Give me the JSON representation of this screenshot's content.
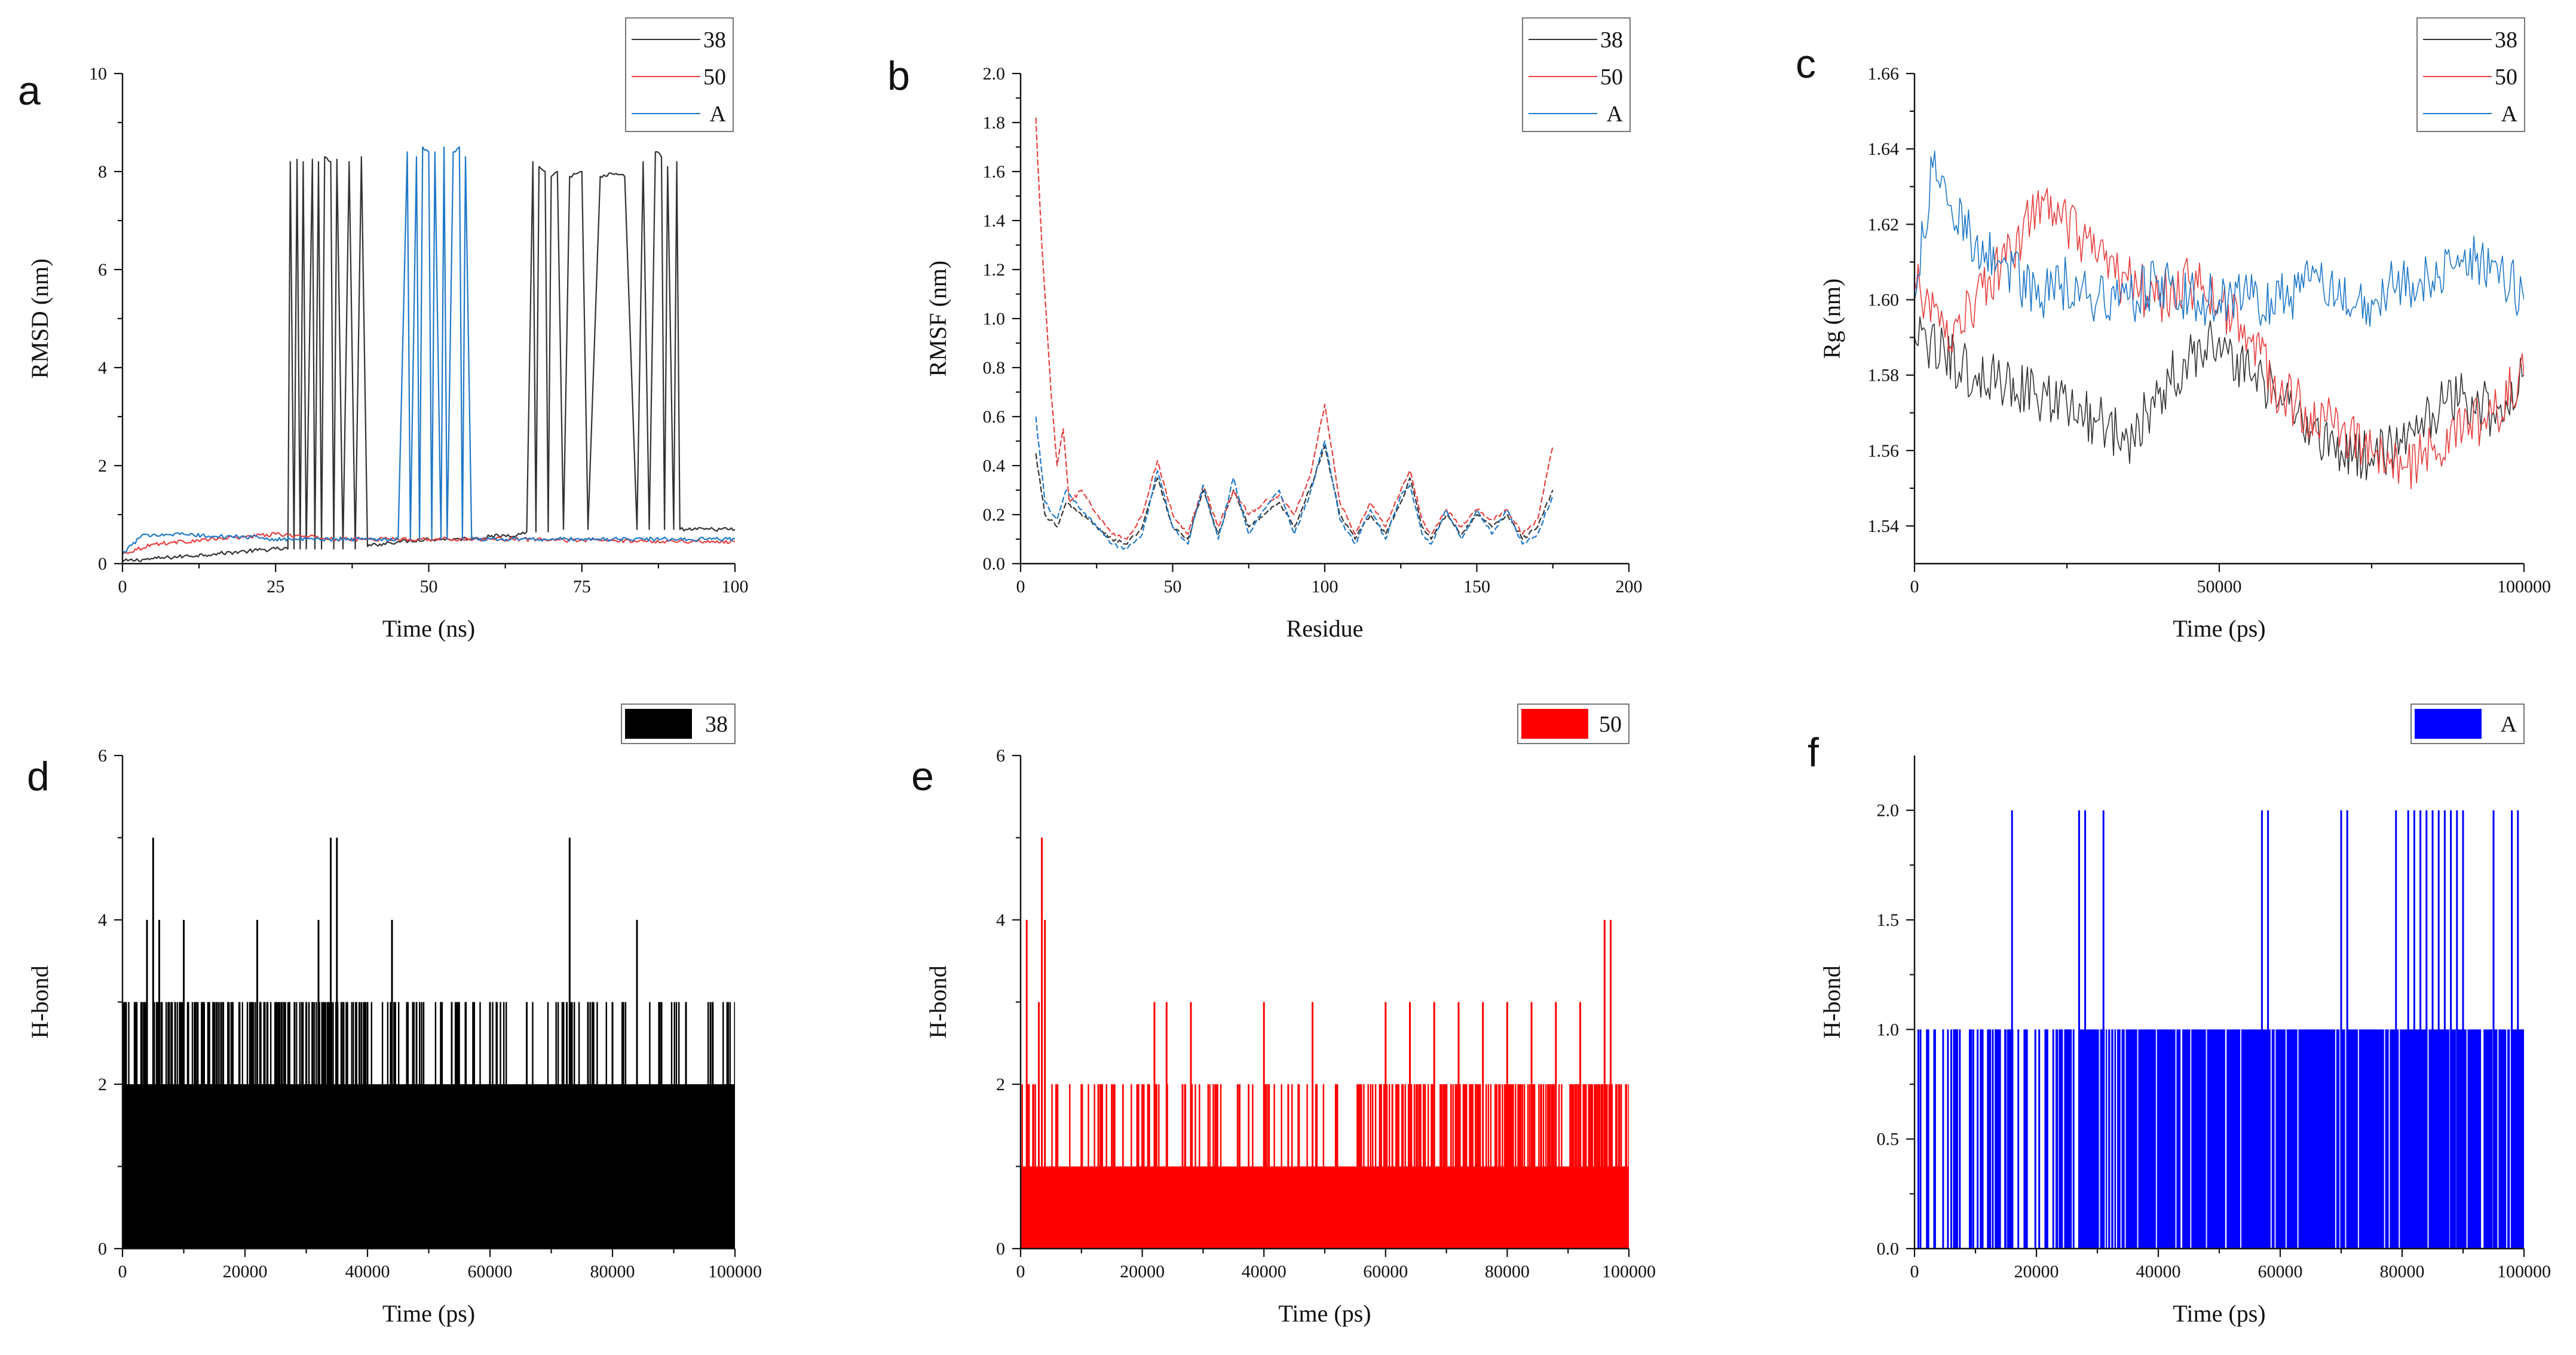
{
  "chart_data": [
    {
      "panel": "a",
      "type": "line",
      "xlabel": "Time (ns)",
      "ylabel": "RMSD (nm)",
      "xlim": [
        0,
        100
      ],
      "ylim": [
        0,
        10
      ],
      "xticks": [
        0,
        25,
        50,
        75,
        100
      ],
      "yticks": [
        0,
        2,
        4,
        6,
        8,
        10
      ],
      "legend_position": "top-right",
      "series": [
        {
          "name": "38",
          "color": "#333333",
          "x": [
            0,
            5,
            10,
            15,
            20,
            25,
            27,
            27.4,
            28,
            28.5,
            29,
            29.5,
            30,
            31,
            31.4,
            32,
            32.5,
            33,
            34,
            34.5,
            35,
            36,
            37,
            38,
            39,
            40,
            42,
            45,
            50,
            55,
            60,
            65,
            66,
            67,
            67.5,
            68,
            69,
            69.5,
            70,
            71,
            72,
            73,
            74,
            75,
            76,
            78,
            80,
            82,
            84,
            85,
            86,
            87,
            88,
            88.5,
            89,
            90,
            90.5,
            91,
            92,
            95,
            100
          ],
          "y": [
            0.05,
            0.1,
            0.15,
            0.2,
            0.25,
            0.3,
            0.3,
            8.2,
            0.3,
            8.25,
            0.3,
            8.2,
            0.3,
            8.25,
            0.3,
            8.2,
            0.3,
            8.3,
            8.2,
            0.3,
            8.25,
            0.3,
            8.2,
            0.3,
            8.3,
            0.35,
            0.4,
            0.45,
            0.5,
            0.5,
            0.55,
            0.6,
            0.65,
            8.2,
            0.65,
            8.1,
            8.0,
            0.65,
            7.9,
            8.0,
            0.7,
            7.9,
            7.95,
            8.0,
            0.7,
            7.9,
            7.95,
            7.9,
            0.7,
            8.2,
            0.7,
            8.4,
            8.3,
            0.7,
            8.1,
            0.7,
            8.2,
            0.7,
            0.7,
            0.7,
            0.7
          ]
        },
        {
          "name": "50",
          "color": "#e84040",
          "x": [
            0,
            5,
            10,
            15,
            20,
            25,
            30,
            35,
            40,
            45,
            50,
            55,
            60,
            65,
            70,
            75,
            80,
            85,
            90,
            95,
            100
          ],
          "y": [
            0.2,
            0.4,
            0.45,
            0.5,
            0.55,
            0.6,
            0.55,
            0.5,
            0.5,
            0.5,
            0.5,
            0.5,
            0.5,
            0.5,
            0.48,
            0.48,
            0.47,
            0.46,
            0.46,
            0.45,
            0.45
          ]
        },
        {
          "name": "A",
          "color": "#1f78c8",
          "x": [
            0,
            3,
            5,
            10,
            15,
            20,
            25,
            30,
            35,
            40,
            45,
            46.5,
            47,
            48,
            48.5,
            49,
            50,
            50.5,
            51,
            52,
            52.5,
            53,
            54,
            55,
            55.5,
            56,
            57,
            60,
            65,
            70,
            75,
            80,
            85,
            90,
            95,
            100
          ],
          "y": [
            0.2,
            0.55,
            0.6,
            0.6,
            0.55,
            0.55,
            0.5,
            0.5,
            0.5,
            0.5,
            0.5,
            8.4,
            0.5,
            8.3,
            0.5,
            8.5,
            8.4,
            0.5,
            8.4,
            0.5,
            8.5,
            0.5,
            8.4,
            8.5,
            0.5,
            8.3,
            0.5,
            0.5,
            0.5,
            0.5,
            0.5,
            0.5,
            0.5,
            0.5,
            0.5,
            0.5
          ]
        }
      ]
    },
    {
      "panel": "b",
      "type": "line",
      "xlabel": "Residue",
      "ylabel": "RMSF (nm)",
      "xlim": [
        0,
        200
      ],
      "ylim": [
        0,
        2.0
      ],
      "xticks": [
        0,
        50,
        100,
        150,
        200
      ],
      "yticks": [
        0.0,
        0.2,
        0.4,
        0.6,
        0.8,
        1.0,
        1.2,
        1.4,
        1.6,
        1.8,
        2.0
      ],
      "legend_position": "top-right",
      "series": [
        {
          "name": "38",
          "color": "#333333",
          "x": [
            5,
            8,
            12,
            15,
            20,
            25,
            30,
            35,
            40,
            45,
            50,
            55,
            60,
            65,
            70,
            75,
            80,
            85,
            90,
            95,
            100,
            105,
            110,
            115,
            120,
            125,
            128,
            132,
            135,
            140,
            145,
            150,
            155,
            160,
            165,
            170,
            175
          ],
          "y": [
            0.45,
            0.2,
            0.15,
            0.25,
            0.2,
            0.15,
            0.1,
            0.08,
            0.15,
            0.35,
            0.15,
            0.1,
            0.3,
            0.12,
            0.3,
            0.15,
            0.2,
            0.25,
            0.15,
            0.3,
            0.48,
            0.2,
            0.1,
            0.2,
            0.12,
            0.25,
            0.35,
            0.15,
            0.1,
            0.2,
            0.12,
            0.2,
            0.15,
            0.2,
            0.1,
            0.15,
            0.3
          ]
        },
        {
          "name": "50",
          "color": "#e84040",
          "x": [
            5,
            7,
            10,
            12,
            14,
            16,
            20,
            25,
            30,
            35,
            40,
            45,
            50,
            55,
            60,
            65,
            70,
            75,
            80,
            85,
            90,
            95,
            100,
            105,
            110,
            115,
            120,
            125,
            128,
            132,
            135,
            140,
            145,
            150,
            155,
            160,
            165,
            170,
            175
          ],
          "y": [
            1.82,
            1.3,
            0.7,
            0.4,
            0.55,
            0.25,
            0.3,
            0.2,
            0.12,
            0.1,
            0.2,
            0.42,
            0.2,
            0.12,
            0.32,
            0.15,
            0.3,
            0.2,
            0.25,
            0.28,
            0.2,
            0.35,
            0.65,
            0.25,
            0.12,
            0.25,
            0.15,
            0.3,
            0.38,
            0.18,
            0.12,
            0.22,
            0.15,
            0.22,
            0.18,
            0.22,
            0.12,
            0.18,
            0.48
          ]
        },
        {
          "name": "A",
          "color": "#1f78c8",
          "x": [
            5,
            8,
            12,
            15,
            20,
            25,
            30,
            35,
            40,
            45,
            50,
            55,
            60,
            65,
            70,
            75,
            80,
            85,
            90,
            95,
            100,
            105,
            110,
            115,
            120,
            125,
            128,
            132,
            135,
            140,
            145,
            150,
            155,
            160,
            165,
            170,
            175
          ],
          "y": [
            0.6,
            0.25,
            0.18,
            0.3,
            0.22,
            0.15,
            0.08,
            0.06,
            0.12,
            0.38,
            0.15,
            0.08,
            0.32,
            0.1,
            0.35,
            0.12,
            0.22,
            0.3,
            0.12,
            0.28,
            0.5,
            0.18,
            0.08,
            0.22,
            0.1,
            0.28,
            0.32,
            0.12,
            0.08,
            0.22,
            0.1,
            0.22,
            0.12,
            0.22,
            0.08,
            0.12,
            0.28
          ]
        }
      ]
    },
    {
      "panel": "c",
      "type": "line",
      "xlabel": "Time (ps)",
      "ylabel": "Rg (nm)",
      "xlim": [
        0,
        100000
      ],
      "ylim": [
        1.53,
        1.66
      ],
      "xticks": [
        0,
        50000,
        100000
      ],
      "yticks": [
        1.54,
        1.56,
        1.58,
        1.6,
        1.62,
        1.64,
        1.66
      ],
      "legend_position": "top-right",
      "series": [
        {
          "name": "38",
          "color": "#333333",
          "x": [
            0,
            5000,
            10000,
            15000,
            20000,
            25000,
            30000,
            35000,
            40000,
            45000,
            50000,
            55000,
            60000,
            65000,
            70000,
            75000,
            80000,
            85000,
            90000,
            95000,
            100000
          ],
          "y": [
            1.59,
            1.585,
            1.58,
            1.578,
            1.575,
            1.572,
            1.568,
            1.563,
            1.575,
            1.585,
            1.59,
            1.58,
            1.575,
            1.565,
            1.56,
            1.558,
            1.562,
            1.57,
            1.575,
            1.57,
            1.58
          ]
        },
        {
          "name": "50",
          "color": "#e84040",
          "x": [
            0,
            5000,
            10000,
            15000,
            20000,
            25000,
            30000,
            35000,
            40000,
            45000,
            50000,
            55000,
            60000,
            65000,
            70000,
            75000,
            80000,
            85000,
            90000,
            95000,
            100000
          ],
          "y": [
            1.605,
            1.59,
            1.6,
            1.61,
            1.625,
            1.62,
            1.61,
            1.605,
            1.6,
            1.605,
            1.6,
            1.59,
            1.575,
            1.57,
            1.565,
            1.56,
            1.555,
            1.56,
            1.565,
            1.57,
            1.58
          ]
        },
        {
          "name": "A",
          "color": "#1f78c8",
          "x": [
            0,
            3000,
            6000,
            10000,
            15000,
            20000,
            25000,
            30000,
            35000,
            40000,
            45000,
            50000,
            55000,
            60000,
            65000,
            70000,
            75000,
            80000,
            85000,
            90000,
            95000,
            100000
          ],
          "y": [
            1.6,
            1.635,
            1.625,
            1.615,
            1.61,
            1.6,
            1.605,
            1.6,
            1.6,
            1.605,
            1.6,
            1.6,
            1.6,
            1.6,
            1.605,
            1.6,
            1.6,
            1.605,
            1.605,
            1.61,
            1.61,
            1.6
          ]
        }
      ]
    },
    {
      "panel": "d",
      "type": "bar",
      "xlabel": "Time (ps)",
      "ylabel": "H-bond",
      "xlim": [
        0,
        100000
      ],
      "ylim": [
        0,
        6
      ],
      "xticks": [
        0,
        20000,
        40000,
        60000,
        80000,
        100000
      ],
      "yticks": [
        0,
        2,
        4,
        6
      ],
      "legend_position": "top-right",
      "series": [
        {
          "name": "38",
          "color": "#000000",
          "base_level": 2,
          "baseline_until": 100000,
          "x": [
            2000,
            4000,
            5000,
            6000,
            8000,
            10000,
            14000,
            18000,
            22000,
            26000,
            30000,
            32000,
            34000,
            35000,
            36000,
            40000,
            44000,
            48000,
            52000,
            56000,
            60000,
            66000,
            72000,
            73000,
            76000,
            80000,
            84000,
            88000,
            92000,
            96000,
            100000
          ],
          "y": [
            3,
            4,
            5,
            4,
            3,
            4,
            3,
            3,
            4,
            3,
            3,
            4,
            5,
            5,
            3,
            3,
            4,
            3,
            3,
            3,
            3,
            3,
            3,
            5,
            3,
            3,
            4,
            3,
            3,
            3,
            3
          ]
        }
      ]
    },
    {
      "panel": "e",
      "type": "bar",
      "xlabel": "Time (ps)",
      "ylabel": "H-bond",
      "xlim": [
        0,
        100000
      ],
      "ylim": [
        0,
        6
      ],
      "xticks": [
        0,
        20000,
        40000,
        60000,
        80000,
        100000
      ],
      "yticks": [
        0,
        2,
        4,
        6
      ],
      "legend_position": "top-right",
      "series": [
        {
          "name": "50",
          "color": "#ff0000",
          "base_level": 1,
          "baseline_until": 100000,
          "x": [
            1000,
            3000,
            3500,
            4000,
            6000,
            10000,
            15000,
            20000,
            22000,
            24000,
            28000,
            32000,
            36000,
            40000,
            44000,
            48000,
            52000,
            56000,
            60000,
            64000,
            68000,
            72000,
            76000,
            80000,
            84000,
            88000,
            92000,
            96000,
            97000,
            100000
          ],
          "y": [
            4,
            3,
            5,
            4,
            2,
            2,
            2,
            2,
            3,
            3,
            3,
            2,
            2,
            3,
            2,
            3,
            2,
            2,
            3,
            3,
            3,
            3,
            3,
            3,
            3,
            3,
            3,
            4,
            4,
            2
          ]
        }
      ]
    },
    {
      "panel": "f",
      "type": "bar",
      "xlabel": "Time (ps)",
      "ylabel": "H-bond",
      "xlim": [
        0,
        100000
      ],
      "ylim": [
        0,
        2.25
      ],
      "xticks": [
        0,
        20000,
        40000,
        60000,
        80000,
        100000
      ],
      "yticks": [
        0.0,
        0.5,
        1.0,
        1.5,
        2.0
      ],
      "legend_position": "top-right",
      "series": [
        {
          "name": "A",
          "color": "#0000ff",
          "base_level": 1,
          "baseline_until": 100000,
          "x": [
            16000,
            27000,
            28000,
            31000,
            57000,
            58000,
            70000,
            71000,
            79000,
            81000,
            82000,
            83000,
            84000,
            85000,
            86000,
            87000,
            88000,
            89000,
            90000,
            95000,
            98000,
            99000
          ],
          "y": [
            2,
            2,
            2,
            2,
            2,
            2,
            2,
            2,
            2,
            2,
            2,
            2,
            2,
            2,
            2,
            2,
            2,
            2,
            2,
            2,
            2,
            2
          ]
        }
      ]
    }
  ]
}
